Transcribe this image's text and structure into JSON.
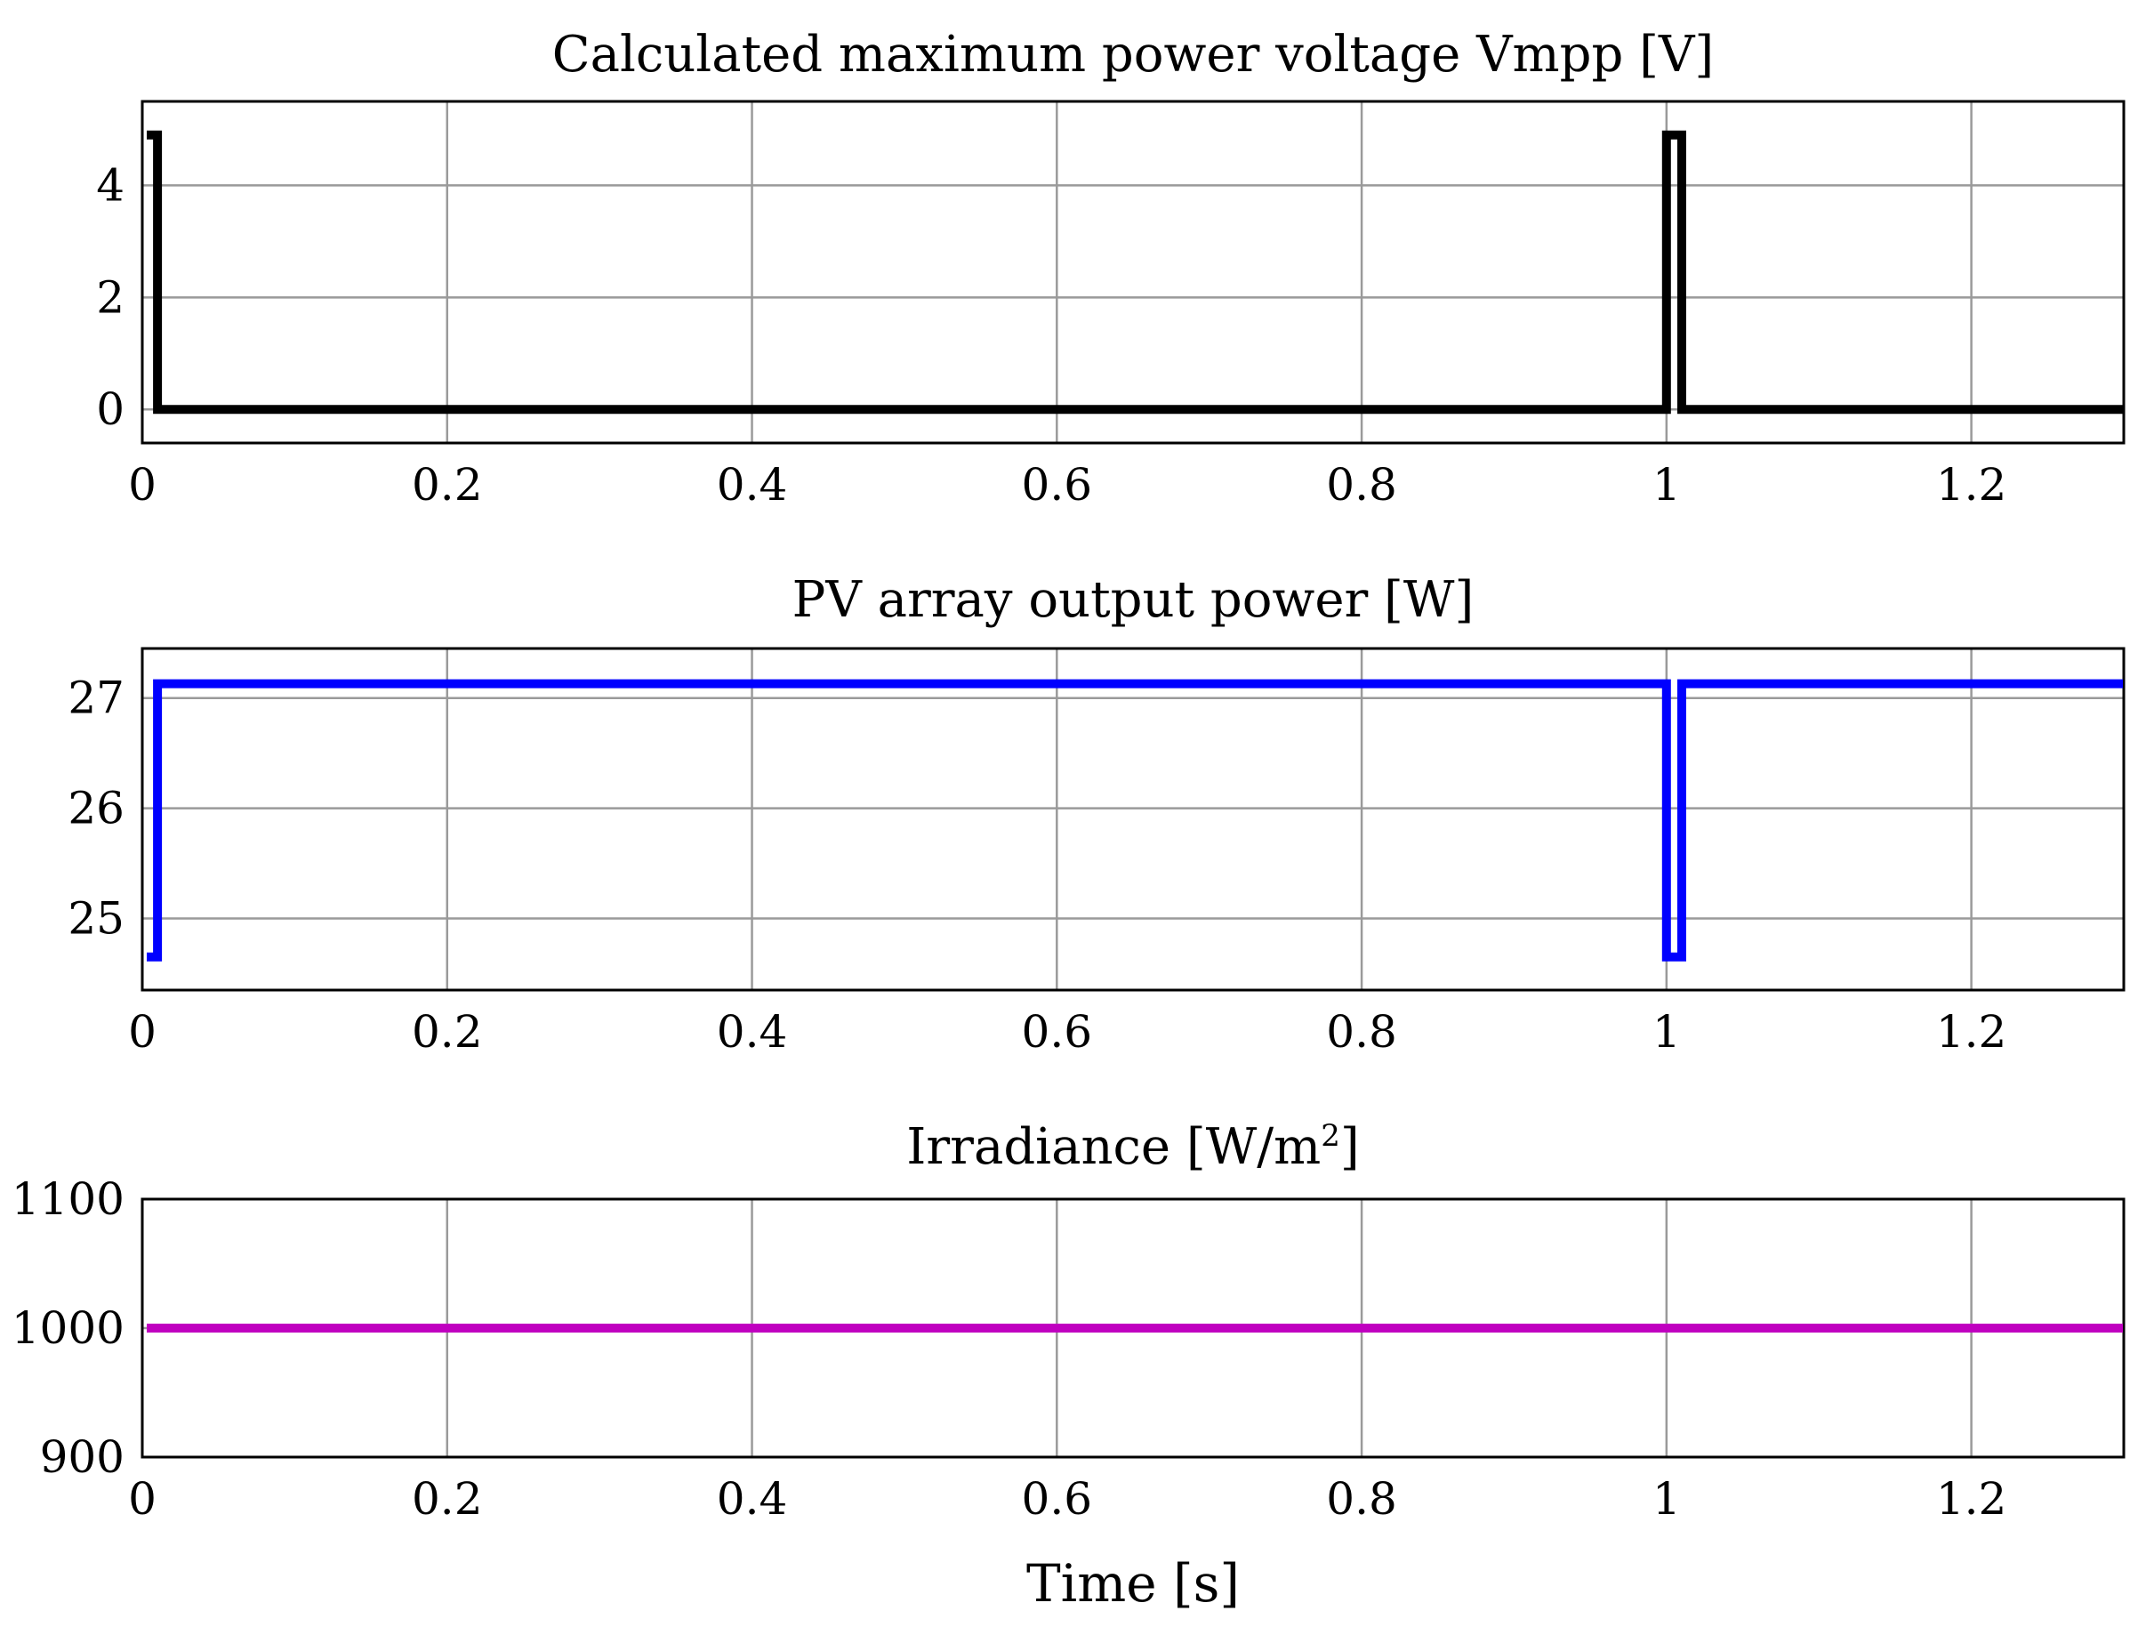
{
  "chart_data": [
    {
      "type": "line",
      "title": "Calculated maximum power voltage Vmpp [V]",
      "xlabel": "",
      "ylabel": "",
      "xlim": [
        0,
        1.3
      ],
      "ylim": [
        -0.6,
        5.5
      ],
      "x_ticks": [
        0,
        0.2,
        0.4,
        0.6,
        0.8,
        1,
        1.2
      ],
      "x_tick_labels": [
        "0",
        "0.2",
        "0.4",
        "0.6",
        "0.8",
        "1",
        "1.2"
      ],
      "y_ticks": [
        0,
        2,
        4
      ],
      "y_tick_labels": [
        "0",
        "2",
        "4"
      ],
      "grid": true,
      "series": [
        {
          "name": "Vmpp",
          "color": "#000000",
          "x": [
            0,
            0.01,
            0.01,
            1.0,
            1.0,
            1.01,
            1.01,
            1.3
          ],
          "y": [
            4.9,
            4.9,
            0,
            0,
            4.9,
            4.9,
            0,
            0
          ]
        }
      ]
    },
    {
      "type": "line",
      "title": "PV array output power [W]",
      "xlabel": "",
      "ylabel": "",
      "xlim": [
        0,
        1.3
      ],
      "ylim": [
        24.35,
        27.45
      ],
      "x_ticks": [
        0,
        0.2,
        0.4,
        0.6,
        0.8,
        1,
        1.2
      ],
      "x_tick_labels": [
        "0",
        "0.2",
        "0.4",
        "0.6",
        "0.8",
        "1",
        "1.2"
      ],
      "y_ticks": [
        25,
        26,
        27
      ],
      "y_tick_labels": [
        "25",
        "26",
        "27"
      ],
      "grid": true,
      "series": [
        {
          "name": "Power",
          "color": "#0000ff",
          "x": [
            0,
            0.01,
            0.01,
            1.0,
            1.0,
            1.01,
            1.01,
            1.3
          ],
          "y": [
            24.65,
            24.65,
            27.13,
            27.13,
            24.65,
            24.65,
            27.13,
            27.13
          ]
        }
      ]
    },
    {
      "type": "line",
      "title": "Irradiance [W/m",
      "title_superscript": "2",
      "title_suffix": "]",
      "xlabel": "Time [s]",
      "ylabel": "",
      "xlim": [
        0,
        1.3
      ],
      "ylim": [
        900,
        1100
      ],
      "x_ticks": [
        0,
        0.2,
        0.4,
        0.6,
        0.8,
        1,
        1.2
      ],
      "x_tick_labels": [
        "0",
        "0.2",
        "0.4",
        "0.6",
        "0.8",
        "1",
        "1.2"
      ],
      "y_ticks": [
        900,
        1000,
        1100
      ],
      "y_tick_labels": [
        "900",
        "1000",
        "1100"
      ],
      "grid": true,
      "series": [
        {
          "name": "Irradiance",
          "color": "#c000c0",
          "x": [
            0,
            1.3
          ],
          "y": [
            1000,
            1000
          ]
        }
      ]
    }
  ]
}
